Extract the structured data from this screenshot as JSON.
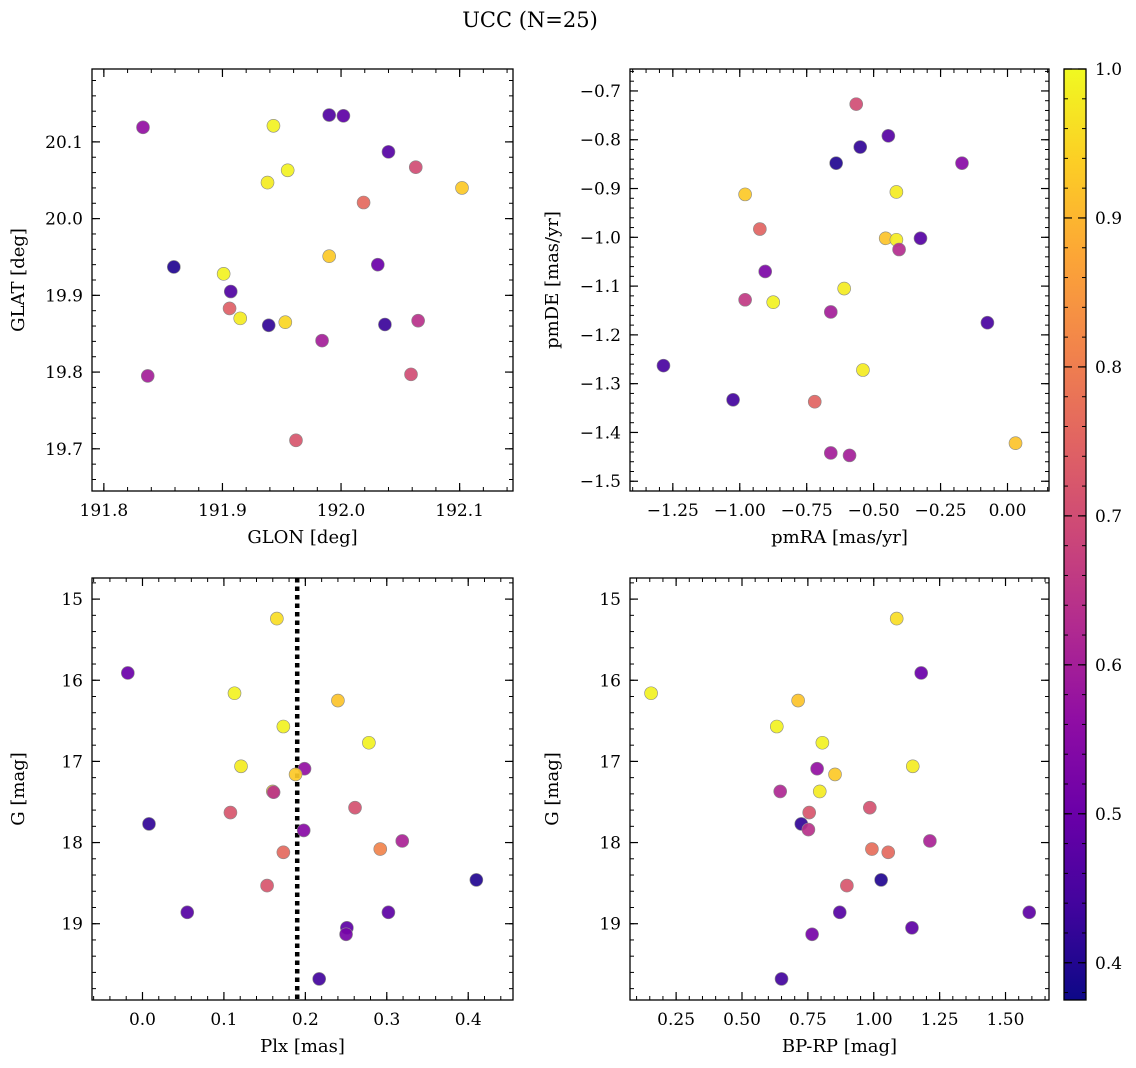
{
  "figure": {
    "title": "UCC (N=25)"
  },
  "colorbar": {
    "colormap": "plasma",
    "range": [
      0.375,
      1.0
    ],
    "ticks": [
      0.4,
      0.5,
      0.6,
      0.7,
      0.8,
      0.9,
      1.0
    ],
    "tick_labels": [
      "0.4",
      "0.5",
      "0.6",
      "0.7",
      "0.8",
      "0.9",
      "1.0"
    ]
  },
  "chart_data": [
    {
      "type": "scatter",
      "id": "spatial",
      "title": "",
      "xlabel": "GLON [deg]",
      "ylabel": "GLAT [deg]",
      "xlim": [
        191.79,
        192.145
      ],
      "ylim": [
        19.645,
        20.195
      ],
      "xticks": [
        191.8,
        191.9,
        192.0,
        192.1
      ],
      "xtick_labels": [
        "191.8",
        "191.9",
        "192.0",
        "192.1"
      ],
      "yticks": [
        19.7,
        19.8,
        19.9,
        20.0,
        20.1
      ],
      "ytick_labels": [
        "19.7",
        "19.8",
        "19.9",
        "20.0",
        "20.1"
      ],
      "points": [
        {
          "x": 191.833,
          "y": 20.119,
          "p": 0.57
        },
        {
          "x": 191.943,
          "y": 20.121,
          "p": 0.99
        },
        {
          "x": 191.99,
          "y": 20.135,
          "p": 0.46
        },
        {
          "x": 192.002,
          "y": 20.134,
          "p": 0.48
        },
        {
          "x": 192.04,
          "y": 20.087,
          "p": 0.47
        },
        {
          "x": 191.938,
          "y": 20.047,
          "p": 0.98
        },
        {
          "x": 191.955,
          "y": 20.063,
          "p": 0.99
        },
        {
          "x": 192.063,
          "y": 20.067,
          "p": 0.7
        },
        {
          "x": 192.102,
          "y": 20.04,
          "p": 0.93
        },
        {
          "x": 192.019,
          "y": 20.021,
          "p": 0.76
        },
        {
          "x": 191.859,
          "y": 19.937,
          "p": 0.4
        },
        {
          "x": 191.901,
          "y": 19.928,
          "p": 0.99
        },
        {
          "x": 191.99,
          "y": 19.951,
          "p": 0.93
        },
        {
          "x": 192.031,
          "y": 19.94,
          "p": 0.5
        },
        {
          "x": 191.907,
          "y": 19.905,
          "p": 0.46
        },
        {
          "x": 191.906,
          "y": 19.883,
          "p": 0.74
        },
        {
          "x": 191.915,
          "y": 19.87,
          "p": 0.98
        },
        {
          "x": 191.939,
          "y": 19.861,
          "p": 0.42
        },
        {
          "x": 191.953,
          "y": 19.865,
          "p": 0.95
        },
        {
          "x": 192.037,
          "y": 19.862,
          "p": 0.43
        },
        {
          "x": 192.065,
          "y": 19.867,
          "p": 0.64
        },
        {
          "x": 191.984,
          "y": 19.841,
          "p": 0.6
        },
        {
          "x": 191.837,
          "y": 19.795,
          "p": 0.6
        },
        {
          "x": 192.059,
          "y": 19.797,
          "p": 0.7
        },
        {
          "x": 191.962,
          "y": 19.711,
          "p": 0.72
        }
      ]
    },
    {
      "type": "scatter",
      "id": "proper-motion",
      "title": "",
      "xlabel": "pmRA [mas/yr]",
      "ylabel": "pmDE [mas/yr]",
      "xlim": [
        -1.41,
        0.155
      ],
      "ylim": [
        -1.52,
        -0.655
      ],
      "xticks": [
        -1.25,
        -1.0,
        -0.75,
        -0.5,
        -0.25,
        0.0
      ],
      "xtick_labels": [
        "−1.25",
        "−1.00",
        "−0.75",
        "−0.50",
        "−0.25",
        "0.00"
      ],
      "yticks": [
        -1.5,
        -1.4,
        -1.3,
        -1.2,
        -1.1,
        -1.0,
        -0.9,
        -0.8,
        -0.7
      ],
      "ytick_labels": [
        "−1.5",
        "−1.4",
        "−1.3",
        "−1.2",
        "−1.1",
        "−1.0",
        "−0.9",
        "−0.8",
        "−0.7"
      ],
      "points": [
        {
          "x": -0.565,
          "y": -0.727,
          "p": 0.7
        },
        {
          "x": -0.445,
          "y": -0.792,
          "p": 0.47
        },
        {
          "x": -0.55,
          "y": -0.815,
          "p": 0.42
        },
        {
          "x": -0.64,
          "y": -0.848,
          "p": 0.4
        },
        {
          "x": -0.17,
          "y": -0.848,
          "p": 0.55
        },
        {
          "x": -0.98,
          "y": -0.912,
          "p": 0.93
        },
        {
          "x": -0.415,
          "y": -0.907,
          "p": 0.98
        },
        {
          "x": -0.925,
          "y": -0.983,
          "p": 0.75
        },
        {
          "x": -0.455,
          "y": -1.002,
          "p": 0.92
        },
        {
          "x": -0.415,
          "y": -1.005,
          "p": 0.98
        },
        {
          "x": -0.325,
          "y": -1.002,
          "p": 0.47
        },
        {
          "x": -0.405,
          "y": -1.025,
          "p": 0.63
        },
        {
          "x": -0.905,
          "y": -1.07,
          "p": 0.53
        },
        {
          "x": -0.61,
          "y": -1.105,
          "p": 0.98
        },
        {
          "x": -0.98,
          "y": -1.128,
          "p": 0.66
        },
        {
          "x": -0.875,
          "y": -1.133,
          "p": 0.99
        },
        {
          "x": -0.66,
          "y": -1.153,
          "p": 0.6
        },
        {
          "x": -0.075,
          "y": -1.175,
          "p": 0.45
        },
        {
          "x": -1.285,
          "y": -1.263,
          "p": 0.45
        },
        {
          "x": -0.54,
          "y": -1.272,
          "p": 0.98
        },
        {
          "x": -1.025,
          "y": -1.333,
          "p": 0.44
        },
        {
          "x": -0.72,
          "y": -1.337,
          "p": 0.75
        },
        {
          "x": 0.03,
          "y": -1.422,
          "p": 0.92
        },
        {
          "x": -0.66,
          "y": -1.442,
          "p": 0.6
        },
        {
          "x": -0.59,
          "y": -1.447,
          "p": 0.6
        }
      ]
    },
    {
      "type": "scatter",
      "id": "parallax",
      "title": "",
      "xlabel": "Plx [mas]",
      "ylabel": "G [mag]",
      "xlim": [
        -0.062,
        0.455
      ],
      "ylim": [
        19.94,
        14.74
      ],
      "y_inverted": true,
      "xticks": [
        0.0,
        0.1,
        0.2,
        0.3,
        0.4
      ],
      "xtick_labels": [
        "0.0",
        "0.1",
        "0.2",
        "0.3",
        "0.4"
      ],
      "yticks": [
        15,
        16,
        17,
        18,
        19
      ],
      "ytick_labels": [
        "15",
        "16",
        "17",
        "18",
        "19"
      ],
      "vline": {
        "x": 0.19,
        "style": "dotted"
      },
      "points": [
        {
          "x": 0.165,
          "y": 15.24,
          "p": 0.96
        },
        {
          "x": -0.018,
          "y": 15.91,
          "p": 0.5
        },
        {
          "x": 0.113,
          "y": 16.16,
          "p": 0.99
        },
        {
          "x": 0.24,
          "y": 16.25,
          "p": 0.92
        },
        {
          "x": 0.173,
          "y": 16.57,
          "p": 0.99
        },
        {
          "x": 0.278,
          "y": 16.77,
          "p": 0.99
        },
        {
          "x": 0.121,
          "y": 17.06,
          "p": 0.98
        },
        {
          "x": 0.199,
          "y": 17.09,
          "p": 0.57
        },
        {
          "x": 0.188,
          "y": 17.16,
          "p": 0.93
        },
        {
          "x": 0.16,
          "y": 17.37,
          "p": 0.93
        },
        {
          "x": 0.161,
          "y": 17.38,
          "p": 0.64
        },
        {
          "x": 0.261,
          "y": 17.57,
          "p": 0.71
        },
        {
          "x": 0.108,
          "y": 17.63,
          "p": 0.72
        },
        {
          "x": 0.008,
          "y": 17.77,
          "p": 0.42
        },
        {
          "x": 0.198,
          "y": 17.85,
          "p": 0.55
        },
        {
          "x": 0.319,
          "y": 17.98,
          "p": 0.61
        },
        {
          "x": 0.292,
          "y": 18.08,
          "p": 0.81
        },
        {
          "x": 0.173,
          "y": 18.12,
          "p": 0.76
        },
        {
          "x": 0.41,
          "y": 18.46,
          "p": 0.4
        },
        {
          "x": 0.153,
          "y": 18.53,
          "p": 0.72
        },
        {
          "x": 0.055,
          "y": 18.86,
          "p": 0.47
        },
        {
          "x": 0.302,
          "y": 18.86,
          "p": 0.48
        },
        {
          "x": 0.251,
          "y": 19.05,
          "p": 0.48
        },
        {
          "x": 0.25,
          "y": 19.13,
          "p": 0.52
        },
        {
          "x": 0.217,
          "y": 19.68,
          "p": 0.44
        }
      ]
    },
    {
      "type": "scatter",
      "id": "cmd",
      "title": "",
      "xlabel": "BP-RP [mag]",
      "ylabel": "G [mag]",
      "xlim": [
        0.075,
        1.665
      ],
      "ylim": [
        19.94,
        14.74
      ],
      "y_inverted": true,
      "xticks": [
        0.25,
        0.5,
        0.75,
        1.0,
        1.25,
        1.5
      ],
      "xtick_labels": [
        "0.25",
        "0.50",
        "0.75",
        "1.00",
        "1.25",
        "1.50"
      ],
      "yticks": [
        15,
        16,
        17,
        18,
        19
      ],
      "ytick_labels": [
        "15",
        "16",
        "17",
        "18",
        "19"
      ],
      "points": [
        {
          "x": 1.087,
          "y": 15.24,
          "p": 0.96
        },
        {
          "x": 0.155,
          "y": 16.16,
          "p": 0.99
        },
        {
          "x": 1.18,
          "y": 15.91,
          "p": 0.5
        },
        {
          "x": 0.713,
          "y": 16.25,
          "p": 0.92
        },
        {
          "x": 0.632,
          "y": 16.57,
          "p": 0.99
        },
        {
          "x": 0.805,
          "y": 16.77,
          "p": 0.99
        },
        {
          "x": 1.148,
          "y": 17.06,
          "p": 0.98
        },
        {
          "x": 0.785,
          "y": 17.09,
          "p": 0.57
        },
        {
          "x": 0.853,
          "y": 17.16,
          "p": 0.93
        },
        {
          "x": 0.795,
          "y": 17.37,
          "p": 0.98
        },
        {
          "x": 0.645,
          "y": 17.37,
          "p": 0.62
        },
        {
          "x": 0.985,
          "y": 17.57,
          "p": 0.71
        },
        {
          "x": 0.755,
          "y": 17.63,
          "p": 0.72
        },
        {
          "x": 0.725,
          "y": 17.77,
          "p": 0.42
        },
        {
          "x": 0.752,
          "y": 17.84,
          "p": 0.64
        },
        {
          "x": 1.213,
          "y": 17.98,
          "p": 0.61
        },
        {
          "x": 0.993,
          "y": 18.08,
          "p": 0.77
        },
        {
          "x": 1.055,
          "y": 18.12,
          "p": 0.76
        },
        {
          "x": 1.028,
          "y": 18.46,
          "p": 0.4
        },
        {
          "x": 0.898,
          "y": 18.53,
          "p": 0.72
        },
        {
          "x": 0.871,
          "y": 18.86,
          "p": 0.47
        },
        {
          "x": 1.59,
          "y": 18.86,
          "p": 0.48
        },
        {
          "x": 1.145,
          "y": 19.05,
          "p": 0.48
        },
        {
          "x": 0.766,
          "y": 19.13,
          "p": 0.52
        },
        {
          "x": 0.65,
          "y": 19.68,
          "p": 0.44
        }
      ]
    }
  ]
}
